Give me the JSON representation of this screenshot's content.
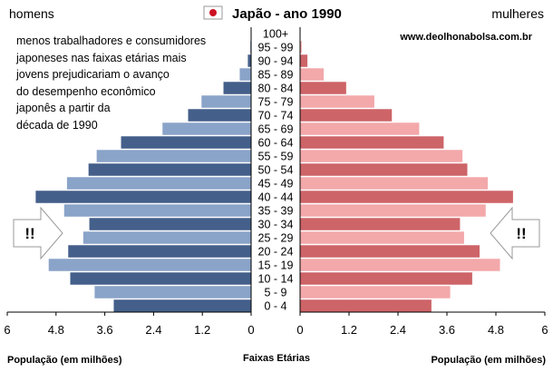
{
  "chart_data": {
    "type": "bar",
    "orientation": "horizontal-pyramid",
    "title": "Japão - ano 1990",
    "left_label": "homens",
    "right_label": "mulheres",
    "website": "www.deolhonabolsa.com.br",
    "annotation_lines": [
      "menos trabalhadores e consumidores",
      "japoneses nas faixas etárias mais",
      "jovens prejudicariam o avanço",
      "do desempenho econômico",
      "japonês a partir da",
      "década de 1990"
    ],
    "arrow_marker": "!!",
    "xlabel_left": "População (em milhões)",
    "xlabel_center": "Faixas Etárias",
    "xlabel_right": "População (em milhões)",
    "xlim": [
      0,
      6
    ],
    "ticks": [
      0,
      1.2,
      2.4,
      3.6,
      4.8,
      6
    ],
    "left_tick_labels": [
      "6",
      "4.8",
      "3.6",
      "2.4",
      "1.2",
      "0"
    ],
    "right_tick_labels": [
      "0",
      "1.2",
      "2.4",
      "3.6",
      "4.8",
      "6"
    ],
    "categories": [
      "0 - 4",
      "5 - 9",
      "10 - 14",
      "15 - 19",
      "20 - 24",
      "25 - 29",
      "30 - 34",
      "35 - 39",
      "40 - 44",
      "45 - 49",
      "50 - 54",
      "55 - 59",
      "60 - 64",
      "65 - 69",
      "70 - 74",
      "75 - 79",
      "80 - 84",
      "85 - 89",
      "90 - 94",
      "95 - 99",
      "100+"
    ],
    "highlighted_categories": [
      "25 - 29",
      "35 - 39",
      "45 - 49",
      "55 - 59",
      "65 - 69",
      "75 - 79",
      "85 - 89",
      "95 - 99",
      "15 - 19",
      "5 - 9"
    ],
    "series": [
      {
        "name": "homens",
        "values": [
          3.38,
          3.85,
          4.45,
          4.98,
          4.5,
          4.13,
          3.98,
          4.6,
          5.3,
          4.53,
          4.0,
          3.8,
          3.2,
          2.18,
          1.55,
          1.22,
          0.68,
          0.28,
          0.08,
          0.02,
          0.0
        ]
      },
      {
        "name": "mulheres",
        "values": [
          3.22,
          3.68,
          4.22,
          4.9,
          4.4,
          4.02,
          3.92,
          4.55,
          5.22,
          4.6,
          4.1,
          3.98,
          3.52,
          2.92,
          2.25,
          1.82,
          1.13,
          0.58,
          0.18,
          0.04,
          0.01
        ]
      }
    ],
    "colors": {
      "men_dark": "#445f8a",
      "men_light": "#8aa3c8",
      "women_dark": "#cd6468",
      "women_light": "#f3a8aa",
      "flag_red": "#cc1122"
    }
  }
}
